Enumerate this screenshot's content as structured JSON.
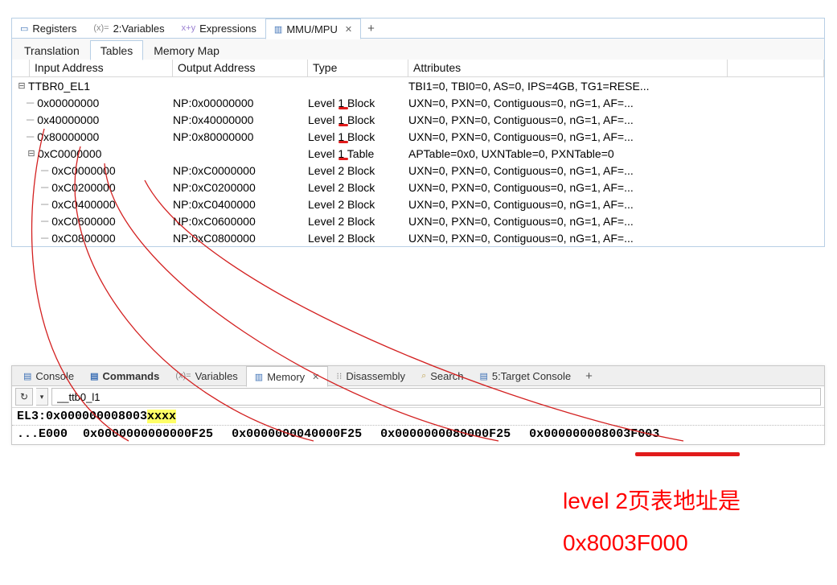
{
  "top_view": {
    "tabs": [
      {
        "icon": "▭",
        "icon_color": "#3b6fb5",
        "label": "Registers"
      },
      {
        "icon": "(x)=",
        "icon_color": "#888",
        "label": "2:Variables"
      },
      {
        "icon": "ᵡ+ʸ",
        "icon_color": "#9a7fd1",
        "label": "Expressions"
      },
      {
        "icon": "▥",
        "icon_color": "#3b6fb5",
        "label": "MMU/MPU",
        "active": true,
        "closable": true
      }
    ],
    "subtabs": [
      {
        "label": "Translation"
      },
      {
        "label": "Tables",
        "active": true
      },
      {
        "label": "Memory Map"
      }
    ],
    "columns": {
      "input": "Input Address",
      "output": "Output Address",
      "type": "Type",
      "attr": "Attributes"
    },
    "rows": [
      {
        "depth": 0,
        "expander": "⊟",
        "in": "TTBR0_EL1",
        "out": "",
        "type": "",
        "attr": "TBI1=0, TBI0=0, AS=0, IPS=4GB, TG1=RESE..."
      },
      {
        "depth": 1,
        "expander": "",
        "in": "0x00000000",
        "out": "NP:0x00000000",
        "type": "Level 1 Block",
        "attr": "UXN=0, PXN=0, Contiguous=0, nG=1, AF=...",
        "mark_level1": true
      },
      {
        "depth": 1,
        "expander": "",
        "in": "0x40000000",
        "out": "NP:0x40000000",
        "type": "Level 1 Block",
        "attr": "UXN=0, PXN=0, Contiguous=0, nG=1, AF=...",
        "mark_level1": true
      },
      {
        "depth": 1,
        "expander": "",
        "in": "0x80000000",
        "out": "NP:0x80000000",
        "type": "Level 1 Block",
        "attr": "UXN=0, PXN=0, Contiguous=0, nG=1, AF=...",
        "mark_level1": true
      },
      {
        "depth": 1,
        "expander": "⊟",
        "in": "0xC0000000",
        "out": "",
        "type": "Level 1 Table",
        "attr": "APTable=0x0, UXNTable=0, PXNTable=0",
        "mark_level1": true
      },
      {
        "depth": 2,
        "expander": "",
        "in": "0xC0000000",
        "out": "NP:0xC0000000",
        "type": "Level 2 Block",
        "attr": "UXN=0, PXN=0, Contiguous=0, nG=1, AF=..."
      },
      {
        "depth": 2,
        "expander": "",
        "in": "0xC0200000",
        "out": "NP:0xC0200000",
        "type": "Level 2 Block",
        "attr": "UXN=0, PXN=0, Contiguous=0, nG=1, AF=..."
      },
      {
        "depth": 2,
        "expander": "",
        "in": "0xC0400000",
        "out": "NP:0xC0400000",
        "type": "Level 2 Block",
        "attr": "UXN=0, PXN=0, Contiguous=0, nG=1, AF=..."
      },
      {
        "depth": 2,
        "expander": "",
        "in": "0xC0600000",
        "out": "NP:0xC0600000",
        "type": "Level 2 Block",
        "attr": "UXN=0, PXN=0, Contiguous=0, nG=1, AF=..."
      },
      {
        "depth": 2,
        "expander": "",
        "in": "0xC0800000",
        "out": "NP:0xC0800000",
        "type": "Level 2 Block",
        "attr": "UXN=0, PXN=0, Contiguous=0, nG=1, AF=..."
      }
    ],
    "mark_color": "#e11b1b"
  },
  "bottom_view": {
    "tabs": [
      {
        "icon": "▤",
        "icon_color": "#3b6fb5",
        "label": "Console"
      },
      {
        "icon": "▤",
        "icon_color": "#3b6fb5",
        "label": "Commands",
        "bold": true
      },
      {
        "icon": "(x)=",
        "icon_color": "#888",
        "label": "Variables"
      },
      {
        "icon": "▥",
        "icon_color": "#3b6fb5",
        "label": "Memory",
        "active": true,
        "closable": true
      },
      {
        "icon": "⁝⁝",
        "icon_color": "#888",
        "label": "Disassembly"
      },
      {
        "icon": "🔍",
        "icon_color": "#c2a75a",
        "label": "Search"
      },
      {
        "icon": "▤",
        "icon_color": "#3b6fb5",
        "label": "5:Target Console"
      }
    ],
    "address_expr": "__ttb0_l1",
    "address_line_prefix": "EL3:0x000000008003",
    "address_line_hl": "xxxx",
    "dump_offset": "...E000",
    "dump_words": [
      "0x0000000000000F25",
      "0x0000000040000F25",
      "0x0000000080000F25",
      "0x000000008003F003"
    ],
    "mark_color": "#e11b1b"
  },
  "annotation": {
    "line1": "level 2页表地址是",
    "line2": "0x8003F000",
    "color": "#ff0000"
  },
  "colors": {
    "panel_border": "#b8cfe5",
    "grid_border": "#d8d8d8",
    "highlight_bg": "#ffff66",
    "red": "#e11b1b"
  }
}
